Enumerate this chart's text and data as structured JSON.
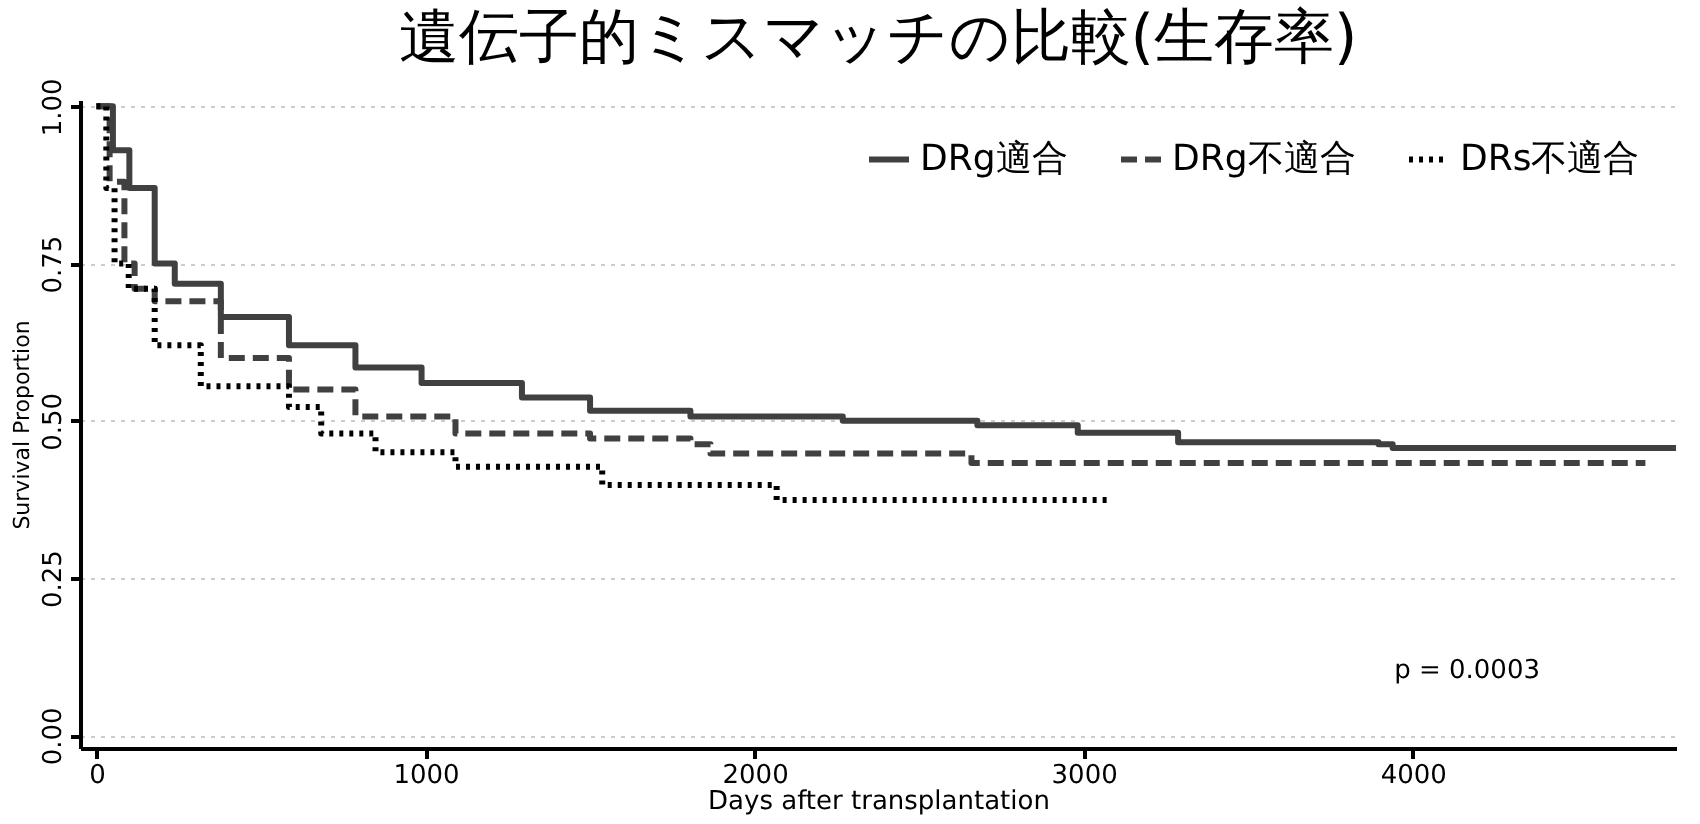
{
  "chart_data": {
    "type": "step",
    "title": "遺伝子的ミスマッチの比較(生存率)",
    "xlabel": "Days after transplantation",
    "ylabel": "Survival Proportion",
    "series": [
      {
        "name": "DRg適合",
        "color": "#404040",
        "line_style": "solid",
        "x": [
          0,
          50,
          100,
          177,
          238,
          378,
          585,
          787,
          988,
          1293,
          1500,
          1805,
          2268,
          2677,
          2982,
          3287,
          3896,
          3939,
          4800
        ],
        "values": [
          1.0,
          0.93,
          0.87,
          0.75,
          0.718,
          0.665,
          0.62,
          0.585,
          0.56,
          0.537,
          0.516,
          0.507,
          0.5,
          0.493,
          0.481,
          0.466,
          0.463,
          0.457,
          0.457
        ]
      },
      {
        "name": "DRg不適合",
        "color": "#404040",
        "line_style": "dashed",
        "x": [
          0,
          40,
          85,
          116,
          177,
          378,
          585,
          787,
          1091,
          1500,
          1805,
          1866,
          2659,
          4707
        ],
        "values": [
          1.0,
          0.88,
          0.75,
          0.71,
          0.69,
          0.6,
          0.55,
          0.507,
          0.48,
          0.472,
          0.463,
          0.448,
          0.433,
          0.433
        ]
      },
      {
        "name": "DRs不適合",
        "color": "#000000",
        "line_style": "dotted",
        "x": [
          0,
          30,
          55,
          98,
          177,
          317,
          585,
          683,
          848,
          1091,
          1537,
          2067,
          3085
        ],
        "values": [
          1.0,
          0.87,
          0.75,
          0.71,
          0.62,
          0.555,
          0.522,
          0.48,
          0.45,
          0.427,
          0.398,
          0.374,
          0.374
        ]
      }
    ],
    "xlim": [
      -50,
      4800
    ],
    "xticks": [
      0,
      1000,
      2000,
      3000,
      4000
    ],
    "ylim": [
      -0.02,
      1.01
    ],
    "yticks": [
      {
        "value": 0,
        "label": "0.00"
      },
      {
        "value": 0.25,
        "label": "0.25"
      },
      {
        "value": 0.5,
        "label": "0.50"
      },
      {
        "value": 0.75,
        "label": "0.75"
      },
      {
        "value": 1,
        "label": "1.00"
      }
    ],
    "grid": "y",
    "legend": "top right",
    "marker": "none",
    "annotations": [
      "p = 0.0003"
    ]
  }
}
